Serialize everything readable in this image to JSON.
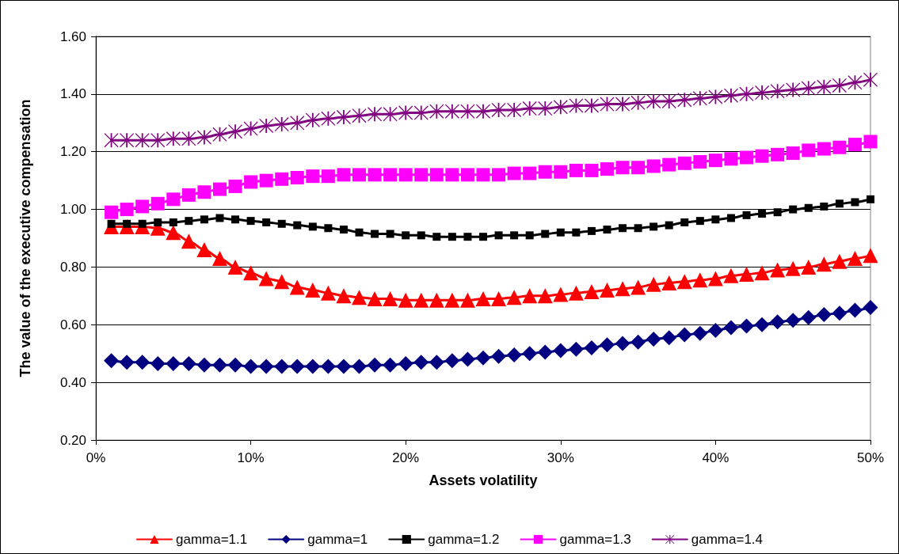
{
  "chart_data": {
    "type": "line",
    "xlabel": "Assets volatility",
    "ylabel": "The value of the executive compensation",
    "x": [
      1,
      2,
      3,
      4,
      5,
      6,
      7,
      8,
      9,
      10,
      11,
      12,
      13,
      14,
      15,
      16,
      17,
      18,
      19,
      20,
      21,
      22,
      23,
      24,
      25,
      26,
      27,
      28,
      29,
      30,
      31,
      32,
      33,
      34,
      35,
      36,
      37,
      38,
      39,
      40,
      41,
      42,
      43,
      44,
      45,
      46,
      47,
      48,
      49,
      50
    ],
    "xlim": [
      0,
      50
    ],
    "xticks": [
      {
        "value": 0,
        "label": "0%"
      },
      {
        "value": 10,
        "label": "10%"
      },
      {
        "value": 20,
        "label": "20%"
      },
      {
        "value": 30,
        "label": "30%"
      },
      {
        "value": 40,
        "label": "40%"
      },
      {
        "value": 50,
        "label": "50%"
      }
    ],
    "ylim": [
      0.2,
      1.6
    ],
    "yticks": [
      {
        "value": 0.2,
        "label": "0.20"
      },
      {
        "value": 0.4,
        "label": "0.40"
      },
      {
        "value": 0.6,
        "label": "0.60"
      },
      {
        "value": 0.8,
        "label": "0.80"
      },
      {
        "value": 1.0,
        "label": "1.00"
      },
      {
        "value": 1.2,
        "label": "1.20"
      },
      {
        "value": 1.4,
        "label": "1.40"
      },
      {
        "value": 1.6,
        "label": "1.60"
      }
    ],
    "grid": "y",
    "legend": "bottom",
    "line_style": "solid",
    "series": [
      {
        "name": "gamma=1.1",
        "color": "#ff0000",
        "marker": "triangle",
        "values": [
          0.94,
          0.94,
          0.94,
          0.935,
          0.92,
          0.89,
          0.86,
          0.83,
          0.8,
          0.78,
          0.76,
          0.75,
          0.73,
          0.72,
          0.71,
          0.7,
          0.695,
          0.69,
          0.69,
          0.685,
          0.685,
          0.685,
          0.685,
          0.685,
          0.69,
          0.69,
          0.695,
          0.7,
          0.7,
          0.705,
          0.71,
          0.715,
          0.72,
          0.725,
          0.73,
          0.74,
          0.745,
          0.75,
          0.755,
          0.76,
          0.77,
          0.775,
          0.78,
          0.79,
          0.795,
          0.8,
          0.81,
          0.82,
          0.83,
          0.84
        ]
      },
      {
        "name": "gamma=1",
        "color": "#000080",
        "marker": "diamond",
        "values": [
          0.475,
          0.47,
          0.47,
          0.465,
          0.465,
          0.465,
          0.46,
          0.46,
          0.46,
          0.455,
          0.455,
          0.455,
          0.455,
          0.455,
          0.455,
          0.455,
          0.455,
          0.46,
          0.46,
          0.465,
          0.47,
          0.47,
          0.475,
          0.48,
          0.485,
          0.49,
          0.495,
          0.5,
          0.505,
          0.51,
          0.515,
          0.52,
          0.53,
          0.535,
          0.54,
          0.55,
          0.555,
          0.565,
          0.57,
          0.58,
          0.59,
          0.595,
          0.6,
          0.61,
          0.615,
          0.625,
          0.635,
          0.64,
          0.65,
          0.66
        ]
      },
      {
        "name": "gamma=1.2",
        "color": "#000000",
        "marker": "square",
        "values": [
          0.95,
          0.95,
          0.95,
          0.955,
          0.955,
          0.96,
          0.965,
          0.97,
          0.965,
          0.96,
          0.955,
          0.95,
          0.945,
          0.94,
          0.935,
          0.93,
          0.92,
          0.915,
          0.915,
          0.91,
          0.91,
          0.905,
          0.905,
          0.905,
          0.905,
          0.91,
          0.91,
          0.91,
          0.915,
          0.92,
          0.92,
          0.925,
          0.93,
          0.935,
          0.935,
          0.94,
          0.945,
          0.955,
          0.96,
          0.965,
          0.97,
          0.98,
          0.985,
          0.99,
          1.0,
          1.005,
          1.01,
          1.02,
          1.025,
          1.035
        ]
      },
      {
        "name": "gamma=1.3",
        "color": "#ff00ff",
        "marker": "square",
        "values": [
          0.99,
          1.0,
          1.01,
          1.02,
          1.035,
          1.05,
          1.06,
          1.07,
          1.08,
          1.095,
          1.1,
          1.105,
          1.11,
          1.115,
          1.115,
          1.12,
          1.12,
          1.12,
          1.12,
          1.12,
          1.12,
          1.12,
          1.12,
          1.12,
          1.12,
          1.12,
          1.125,
          1.125,
          1.13,
          1.13,
          1.135,
          1.135,
          1.14,
          1.145,
          1.145,
          1.15,
          1.155,
          1.16,
          1.165,
          1.17,
          1.175,
          1.18,
          1.185,
          1.19,
          1.195,
          1.205,
          1.21,
          1.215,
          1.225,
          1.235
        ]
      },
      {
        "name": "gamma=1.4",
        "color": "#800080",
        "marker": "cross",
        "values": [
          1.24,
          1.24,
          1.24,
          1.24,
          1.245,
          1.245,
          1.25,
          1.26,
          1.27,
          1.28,
          1.29,
          1.295,
          1.3,
          1.31,
          1.315,
          1.32,
          1.325,
          1.33,
          1.33,
          1.335,
          1.335,
          1.34,
          1.34,
          1.34,
          1.34,
          1.345,
          1.345,
          1.35,
          1.35,
          1.355,
          1.36,
          1.36,
          1.365,
          1.365,
          1.37,
          1.375,
          1.375,
          1.38,
          1.385,
          1.39,
          1.395,
          1.4,
          1.405,
          1.41,
          1.415,
          1.42,
          1.425,
          1.43,
          1.44,
          1.45
        ]
      }
    ]
  }
}
